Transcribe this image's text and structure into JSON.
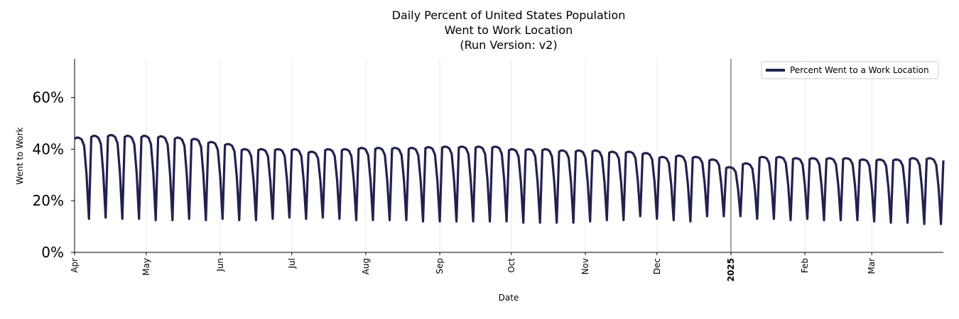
{
  "chart_data": {
    "type": "line",
    "title_lines": [
      "Daily Percent of United States Population",
      "Went to Work Location",
      "(Run Version: v2)"
    ],
    "xlabel": "Date",
    "ylabel": "Went to Work",
    "ylim": [
      0,
      0.75
    ],
    "yticks": [
      {
        "value": 0,
        "label": "0%"
      },
      {
        "value": 0.2,
        "label": "20%"
      },
      {
        "value": 0.4,
        "label": "40%"
      },
      {
        "value": 0.6,
        "label": "60%"
      }
    ],
    "xlim_days": [
      0,
      364
    ],
    "xticks": [
      {
        "day": 0,
        "label": "Apr",
        "bold": false
      },
      {
        "day": 30,
        "label": "May",
        "bold": false
      },
      {
        "day": 61,
        "label": "Jun",
        "bold": false
      },
      {
        "day": 91,
        "label": "Jul",
        "bold": false
      },
      {
        "day": 122,
        "label": "Aug",
        "bold": false
      },
      {
        "day": 153,
        "label": "Sep",
        "bold": false
      },
      {
        "day": 183,
        "label": "Oct",
        "bold": false
      },
      {
        "day": 214,
        "label": "Nov",
        "bold": false
      },
      {
        "day": 244,
        "label": "Dec",
        "bold": false
      },
      {
        "day": 275,
        "label": "2025",
        "bold": true
      },
      {
        "day": 306,
        "label": "Feb",
        "bold": false
      },
      {
        "day": 334,
        "label": "Mar",
        "bold": false
      }
    ],
    "year_marker_day": 275,
    "grid": "vertical at month starts",
    "legend": {
      "label": "Percent Went to a Work Location",
      "position": "top-right"
    },
    "series": [
      {
        "name": "Percent Went to a Work Location",
        "color": "#20224e",
        "weekly_peaks": [
          0.445,
          0.452,
          0.455,
          0.452,
          0.452,
          0.45,
          0.445,
          0.44,
          0.428,
          0.42,
          0.4,
          0.4,
          0.4,
          0.4,
          0.39,
          0.4,
          0.4,
          0.405,
          0.405,
          0.405,
          0.405,
          0.408,
          0.41,
          0.41,
          0.41,
          0.41,
          0.4,
          0.4,
          0.4,
          0.395,
          0.395,
          0.395,
          0.39,
          0.39,
          0.385,
          0.37,
          0.375,
          0.37,
          0.36,
          0.33,
          0.345,
          0.37,
          0.37,
          0.365,
          0.365,
          0.365,
          0.365,
          0.36,
          0.36,
          0.36,
          0.365,
          0.365,
          0.36,
          0.36
        ],
        "weekly_troughs": [
          0.13,
          0.135,
          0.13,
          0.13,
          0.125,
          0.125,
          0.13,
          0.125,
          0.13,
          0.125,
          0.125,
          0.13,
          0.135,
          0.13,
          0.135,
          0.13,
          0.125,
          0.125,
          0.125,
          0.125,
          0.12,
          0.12,
          0.12,
          0.12,
          0.12,
          0.12,
          0.115,
          0.115,
          0.115,
          0.115,
          0.12,
          0.125,
          0.125,
          0.14,
          0.13,
          0.125,
          0.12,
          0.14,
          0.14,
          0.14,
          0.13,
          0.13,
          0.125,
          0.13,
          0.125,
          0.125,
          0.125,
          0.12,
          0.115,
          0.115,
          0.11,
          0.11,
          0.11,
          0.11
        ]
      }
    ]
  }
}
